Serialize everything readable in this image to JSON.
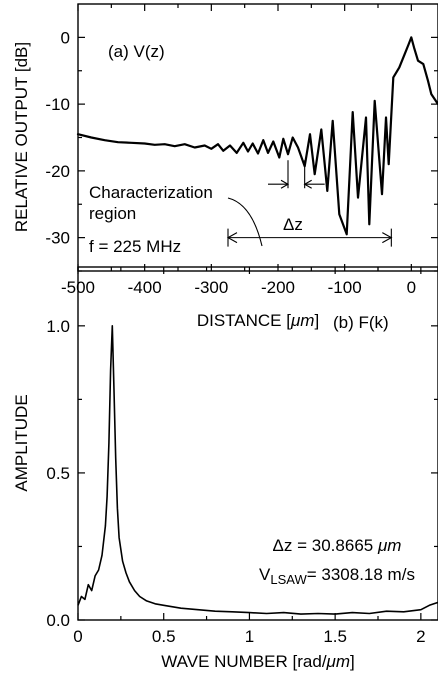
{
  "chart_data": [
    {
      "type": "line",
      "panel_label": "(a) V(z)",
      "xlabel_parts": [
        "DISTANCE [",
        "μm",
        "]"
      ],
      "ylabel": "RELATIVE OUTPUT [dB]",
      "xlim": [
        -500,
        40
      ],
      "ylim": [
        -35,
        5
      ],
      "x_ticks": [
        "-500",
        "-400",
        "-300",
        "-200",
        "-100",
        "0"
      ],
      "x_tick_values": [
        -500,
        -400,
        -300,
        -200,
        -100,
        0
      ],
      "y_ticks": [
        "0",
        "-10",
        "-20",
        "-30"
      ],
      "y_tick_values": [
        0,
        -10,
        -20,
        -30
      ],
      "grid": false,
      "series": [
        {
          "x": [
            -500,
            -480,
            -460,
            -440,
            -420,
            -400,
            -385,
            -370,
            -355,
            -340,
            -325,
            -310,
            -300,
            -290,
            -282,
            -272,
            -262,
            -252,
            -245,
            -238,
            -230,
            -222,
            -215,
            -207,
            -198,
            -192,
            -185,
            -178,
            -170,
            -160,
            -152,
            -145,
            -135,
            -126,
            -118,
            -108,
            -97,
            -88,
            -80,
            -68,
            -63,
            -55,
            -44,
            -38,
            -34,
            -27,
            -18,
            -10,
            -4,
            0,
            4,
            10,
            18,
            25,
            30,
            40
          ],
          "y": [
            -14.5,
            -15.0,
            -15.4,
            -15.7,
            -15.8,
            -15.9,
            -16.1,
            -16.0,
            -16.3,
            -16.0,
            -16.5,
            -16.2,
            -16.7,
            -16.0,
            -17.0,
            -16.2,
            -17.3,
            -15.8,
            -17.1,
            -15.9,
            -17.4,
            -15.4,
            -17.3,
            -15.6,
            -18.0,
            -15.2,
            -17.5,
            -15.0,
            -16.5,
            -19.3,
            -14.5,
            -20.5,
            -13.8,
            -23.0,
            -12.5,
            -26.5,
            -29.5,
            -11.2,
            -24.0,
            -12.0,
            -28.0,
            -9.5,
            -23.5,
            -12.0,
            -19.0,
            -6.0,
            -4.5,
            -2.5,
            -1.0,
            0.0,
            -1.5,
            -3.5,
            -4.0,
            -6.5,
            -8.5,
            -10.0
          ]
        }
      ],
      "annotations": {
        "region_label": [
          "Characterization",
          "region"
        ],
        "delta_z_label": "Δz",
        "frequency_label": "f = 225 MHz",
        "region_arrow_x": [
          -275,
          -30
        ],
        "region_arrow_y": -30,
        "dz_marks_x": [
          -185,
          -160
        ],
        "dz_marks_y": -22
      }
    },
    {
      "type": "line",
      "panel_label": "(b) F(k)",
      "xlabel_parts": [
        "WAVE NUMBER [rad/",
        "μm",
        "]"
      ],
      "ylabel": "AMPLITUDE",
      "xlim": [
        0,
        2.1
      ],
      "ylim": [
        0,
        1.2
      ],
      "x_ticks": [
        "0",
        "0.5",
        "1",
        "1.5",
        "2"
      ],
      "x_tick_values": [
        0,
        0.5,
        1,
        1.5,
        2
      ],
      "y_ticks": [
        "0.0",
        "0.5",
        "1.0"
      ],
      "y_tick_values": [
        0,
        0.5,
        1.0
      ],
      "grid": false,
      "series": [
        {
          "x": [
            0.0,
            0.02,
            0.04,
            0.06,
            0.08,
            0.1,
            0.12,
            0.14,
            0.16,
            0.17,
            0.18,
            0.19,
            0.2,
            0.21,
            0.22,
            0.23,
            0.24,
            0.26,
            0.28,
            0.3,
            0.33,
            0.36,
            0.4,
            0.45,
            0.5,
            0.6,
            0.7,
            0.8,
            0.9,
            1.0,
            1.1,
            1.2,
            1.3,
            1.4,
            1.5,
            1.6,
            1.7,
            1.8,
            1.9,
            2.0,
            2.05,
            2.1
          ],
          "y": [
            0.05,
            0.08,
            0.07,
            0.12,
            0.1,
            0.15,
            0.17,
            0.22,
            0.32,
            0.42,
            0.6,
            0.85,
            1.0,
            0.78,
            0.55,
            0.38,
            0.28,
            0.2,
            0.16,
            0.13,
            0.1,
            0.08,
            0.065,
            0.055,
            0.05,
            0.04,
            0.035,
            0.03,
            0.028,
            0.025,
            0.022,
            0.025,
            0.02,
            0.022,
            0.02,
            0.025,
            0.022,
            0.03,
            0.028,
            0.035,
            0.05,
            0.06
          ]
        }
      ],
      "annotations": {
        "delta_z_parts": [
          "Δz = 30.8665 ",
          "μm"
        ],
        "v_lsaw_parts": [
          "V",
          "LSAW",
          "= 3308.18 m/s"
        ]
      }
    }
  ]
}
